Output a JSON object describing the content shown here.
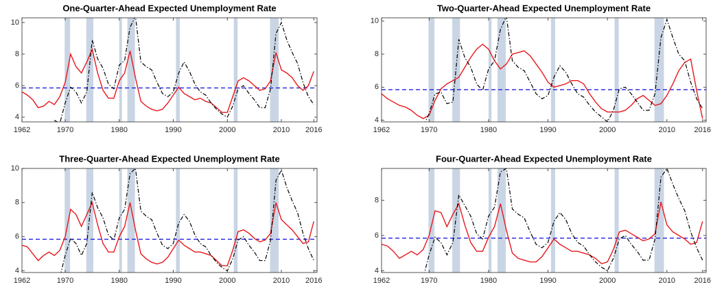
{
  "chart_data": [
    {
      "type": "line",
      "title": "One-Quarter-Ahead Expected Unemployment Rate",
      "x": [
        1962,
        1963,
        1964,
        1965,
        1966,
        1967,
        1968,
        1969,
        1970,
        1971,
        1972,
        1973,
        1974,
        1975,
        1976,
        1977,
        1978,
        1979,
        1980,
        1981,
        1982,
        1983,
        1984,
        1985,
        1986,
        1987,
        1988,
        1989,
        1990,
        1991,
        1992,
        1993,
        1994,
        1995,
        1996,
        1997,
        1998,
        1999,
        2000,
        2001,
        2002,
        2003,
        2004,
        2005,
        2006,
        2007,
        2008,
        2009,
        2010,
        2011,
        2012,
        2013,
        2014,
        2015,
        2016
      ],
      "series": [
        {
          "color": "#e8161b",
          "style": "solid",
          "values": [
            5.6,
            5.4,
            5.1,
            4.6,
            4.7,
            5.0,
            4.8,
            5.3,
            6.2,
            8.0,
            7.2,
            6.8,
            7.5,
            8.3,
            6.8,
            5.7,
            5.2,
            5.2,
            6.3,
            6.8,
            8.2,
            6.5,
            5.0,
            4.7,
            4.5,
            4.4,
            4.5,
            4.9,
            5.4,
            5.9,
            5.5,
            5.3,
            5.1,
            5.2,
            5.0,
            4.9,
            4.6,
            4.3,
            4.3,
            5.3,
            6.3,
            6.5,
            6.3,
            6.0,
            5.7,
            5.8,
            6.3,
            8.1,
            7.0,
            6.8,
            6.5,
            6.0,
            5.7,
            6.0,
            6.9
          ]
        },
        {
          "color": "#000000",
          "style": "dash-dot",
          "values": [
            null,
            null,
            null,
            null,
            null,
            null,
            3.8,
            3.6,
            4.9,
            5.9,
            5.6,
            4.9,
            5.6,
            8.9,
            7.7,
            7.1,
            6.1,
            5.8,
            7.3,
            7.6,
            9.7,
            10.4,
            7.5,
            7.2,
            7.0,
            6.2,
            5.5,
            5.3,
            5.6,
            6.8,
            7.5,
            6.9,
            6.1,
            5.6,
            5.4,
            4.9,
            4.5,
            4.2,
            4.0,
            4.7,
            5.8,
            6.0,
            5.5,
            5.1,
            4.6,
            4.6,
            5.8,
            9.3,
            10.0,
            8.9,
            8.1,
            7.4,
            6.2,
            5.3,
            4.8
          ]
        }
      ],
      "hline": 5.85,
      "hline_color": "#1f1fe0",
      "recessions": [
        [
          1969.9,
          1970.9
        ],
        [
          1973.9,
          1975.2
        ],
        [
          1980.0,
          1980.5
        ],
        [
          1981.5,
          1982.9
        ],
        [
          1990.5,
          1991.2
        ],
        [
          2001.2,
          2001.9
        ],
        [
          2007.9,
          2009.5
        ]
      ],
      "recession_color": "#c9d5e4",
      "xlim": [
        1962,
        2016.6
      ],
      "xticks": [
        1962,
        1970,
        1980,
        1990,
        2000,
        2010,
        2016
      ],
      "ylim": [
        3.7,
        10.3
      ],
      "yticks": [
        4,
        6,
        8,
        10
      ]
    },
    {
      "type": "line",
      "title": "Two-Quarter-Ahead Expected Unemployment Rate",
      "x": [
        1962,
        1963,
        1964,
        1965,
        1966,
        1967,
        1968,
        1969,
        1970,
        1971,
        1972,
        1973,
        1974,
        1975,
        1976,
        1977,
        1978,
        1979,
        1980,
        1981,
        1982,
        1983,
        1984,
        1985,
        1986,
        1987,
        1988,
        1989,
        1990,
        1991,
        1992,
        1993,
        1994,
        1995,
        1996,
        1997,
        1998,
        1999,
        2000,
        2001,
        2002,
        2003,
        2004,
        2005,
        2006,
        2007,
        2008,
        2009,
        2010,
        2011,
        2012,
        2013,
        2014,
        2015,
        2016
      ],
      "series": [
        {
          "color": "#e8161b",
          "style": "solid",
          "values": [
            5.6,
            5.3,
            5.1,
            4.9,
            4.8,
            4.6,
            4.3,
            4.1,
            4.3,
            5.2,
            5.9,
            6.2,
            6.4,
            6.6,
            7.2,
            7.8,
            8.3,
            8.6,
            8.3,
            7.6,
            7.1,
            7.4,
            8.0,
            8.1,
            8.2,
            7.9,
            7.4,
            6.9,
            6.3,
            6.0,
            6.1,
            6.2,
            6.4,
            6.4,
            6.2,
            5.6,
            5.1,
            4.7,
            4.5,
            4.5,
            4.5,
            4.6,
            4.9,
            5.3,
            5.5,
            5.2,
            4.9,
            5.0,
            5.5,
            6.2,
            7.0,
            7.5,
            7.7,
            5.8,
            4.1
          ]
        },
        {
          "color": "#000000",
          "style": "dash-dot",
          "values": [
            null,
            null,
            null,
            null,
            null,
            null,
            3.8,
            3.6,
            4.4,
            5.6,
            5.7,
            5.0,
            5.1,
            8.9,
            7.8,
            7.2,
            6.2,
            5.8,
            7.1,
            7.6,
            9.5,
            10.3,
            7.6,
            7.2,
            7.0,
            6.3,
            5.6,
            5.3,
            5.5,
            6.6,
            7.3,
            6.9,
            6.2,
            5.6,
            5.4,
            4.9,
            4.5,
            4.2,
            3.9,
            4.6,
            5.9,
            6.0,
            5.6,
            5.1,
            4.6,
            4.6,
            5.6,
            9.0,
            10.1,
            9.0,
            8.0,
            7.6,
            6.3,
            5.3,
            4.7
          ]
        }
      ],
      "hline": 5.85,
      "hline_color": "#1f1fe0",
      "recessions": [
        [
          1969.9,
          1970.9
        ],
        [
          1973.9,
          1975.2
        ],
        [
          1980.0,
          1980.5
        ],
        [
          1981.5,
          1982.9
        ],
        [
          1990.5,
          1991.2
        ],
        [
          2001.2,
          2001.9
        ],
        [
          2007.9,
          2009.5
        ]
      ],
      "recession_color": "#c9d5e4",
      "xlim": [
        1962,
        2016.6
      ],
      "xticks": [
        1962,
        1970,
        1980,
        1990,
        2000,
        2010,
        2016
      ],
      "ylim": [
        3.9,
        10.2
      ],
      "yticks": [
        4,
        6,
        8,
        10
      ]
    },
    {
      "type": "line",
      "title": "Three-Quarter-Ahead Expected Unemployment Rate",
      "x": [
        1962,
        1963,
        1964,
        1965,
        1966,
        1967,
        1968,
        1969,
        1970,
        1971,
        1972,
        1973,
        1974,
        1975,
        1976,
        1977,
        1978,
        1979,
        1980,
        1981,
        1982,
        1983,
        1984,
        1985,
        1986,
        1987,
        1988,
        1989,
        1990,
        1991,
        1992,
        1993,
        1994,
        1995,
        1996,
        1997,
        1998,
        1999,
        2000,
        2001,
        2002,
        2003,
        2004,
        2005,
        2006,
        2007,
        2008,
        2009,
        2010,
        2011,
        2012,
        2013,
        2014,
        2015,
        2016
      ],
      "series": [
        {
          "color": "#e8161b",
          "style": "solid",
          "values": [
            5.5,
            5.4,
            5.0,
            4.6,
            4.9,
            5.1,
            4.9,
            5.2,
            6.0,
            7.6,
            7.3,
            6.6,
            7.3,
            8.0,
            6.7,
            5.6,
            5.1,
            5.1,
            6.0,
            6.6,
            8.0,
            6.4,
            5.0,
            4.7,
            4.5,
            4.4,
            4.5,
            4.8,
            5.3,
            5.8,
            5.5,
            5.3,
            5.1,
            5.1,
            5.0,
            4.9,
            4.6,
            4.3,
            4.3,
            5.2,
            6.3,
            6.4,
            6.2,
            5.9,
            5.7,
            5.8,
            6.2,
            8.0,
            7.0,
            6.7,
            6.4,
            6.0,
            5.6,
            5.7,
            6.9
          ]
        },
        {
          "color": "#000000",
          "style": "dash-dot",
          "values": [
            null,
            null,
            null,
            null,
            null,
            null,
            3.8,
            3.6,
            4.9,
            5.9,
            5.6,
            4.9,
            5.6,
            8.6,
            7.7,
            7.1,
            6.1,
            5.8,
            7.1,
            7.6,
            9.7,
            10.0,
            7.5,
            7.2,
            7.0,
            6.2,
            5.5,
            5.3,
            5.6,
            6.8,
            7.3,
            6.9,
            6.1,
            5.6,
            5.4,
            4.9,
            4.5,
            4.2,
            4.0,
            4.7,
            5.8,
            6.0,
            5.5,
            5.1,
            4.6,
            4.6,
            5.8,
            9.3,
            9.9,
            8.9,
            8.1,
            7.4,
            6.2,
            5.3,
            4.6
          ]
        }
      ],
      "hline": 5.85,
      "hline_color": "#1f1fe0",
      "recessions": [
        [
          1969.9,
          1970.9
        ],
        [
          1973.9,
          1975.2
        ],
        [
          1980.0,
          1980.5
        ],
        [
          1981.5,
          1982.9
        ],
        [
          1990.5,
          1991.2
        ],
        [
          2001.2,
          2001.9
        ],
        [
          2007.9,
          2009.5
        ]
      ],
      "recession_color": "#c9d5e4",
      "xlim": [
        1962,
        2016.6
      ],
      "xticks": [
        1962,
        1970,
        1980,
        1990,
        2000,
        2010,
        2016
      ],
      "ylim": [
        3.9,
        10.0
      ],
      "yticks": [
        4,
        6,
        8,
        10
      ]
    },
    {
      "type": "line",
      "title": "Four-Quarter-Ahead Expected Unemployment Rate",
      "x": [
        1962,
        1963,
        1964,
        1965,
        1966,
        1967,
        1968,
        1969,
        1970,
        1971,
        1972,
        1973,
        1974,
        1975,
        1976,
        1977,
        1978,
        1979,
        1980,
        1981,
        1982,
        1983,
        1984,
        1985,
        1986,
        1987,
        1988,
        1989,
        1990,
        1991,
        1992,
        1993,
        1994,
        1995,
        1996,
        1997,
        1998,
        1999,
        2000,
        2001,
        2002,
        2003,
        2004,
        2005,
        2006,
        2007,
        2008,
        2009,
        2010,
        2011,
        2012,
        2013,
        2014,
        2015,
        2016
      ],
      "series": [
        {
          "color": "#e8161b",
          "style": "solid",
          "values": [
            5.5,
            5.4,
            5.1,
            4.7,
            4.9,
            5.1,
            4.9,
            5.2,
            6.0,
            7.4,
            7.3,
            6.5,
            7.2,
            7.8,
            6.6,
            5.6,
            5.1,
            5.1,
            5.9,
            6.5,
            7.8,
            6.3,
            5.0,
            4.7,
            4.6,
            4.5,
            4.5,
            4.8,
            5.3,
            5.8,
            5.5,
            5.3,
            5.1,
            5.1,
            5.0,
            4.9,
            4.7,
            4.4,
            4.5,
            5.2,
            6.2,
            6.3,
            6.1,
            5.9,
            5.7,
            5.8,
            6.1,
            7.9,
            6.6,
            6.2,
            6.0,
            5.8,
            5.5,
            5.6,
            6.8
          ]
        },
        {
          "color": "#000000",
          "style": "dash-dot",
          "values": [
            null,
            null,
            null,
            null,
            null,
            null,
            3.8,
            3.6,
            4.9,
            5.9,
            5.6,
            4.9,
            5.6,
            8.3,
            7.7,
            7.1,
            6.1,
            5.8,
            7.1,
            7.6,
            9.6,
            9.8,
            7.5,
            7.2,
            7.0,
            6.2,
            5.5,
            5.3,
            5.6,
            6.8,
            7.3,
            6.9,
            6.1,
            5.6,
            5.4,
            4.9,
            4.5,
            4.2,
            4.0,
            4.7,
            5.8,
            6.0,
            5.5,
            5.1,
            4.6,
            4.6,
            5.8,
            9.3,
            9.8,
            8.9,
            8.1,
            7.4,
            6.2,
            5.3,
            4.6
          ]
        }
      ],
      "hline": 5.85,
      "hline_color": "#1f1fe0",
      "recessions": [
        [
          1969.9,
          1970.9
        ],
        [
          1973.9,
          1975.2
        ],
        [
          1980.0,
          1980.5
        ],
        [
          1981.5,
          1982.9
        ],
        [
          1990.5,
          1991.2
        ],
        [
          2001.2,
          2001.9
        ],
        [
          2007.9,
          2009.5
        ]
      ],
      "recession_color": "#c9d5e4",
      "xlim": [
        1962,
        2016.6
      ],
      "xticks": [
        1962,
        1970,
        1980,
        1990,
        2000,
        2010,
        2016
      ],
      "ylim": [
        3.9,
        9.8
      ],
      "yticks": [
        4,
        6,
        8
      ]
    }
  ]
}
